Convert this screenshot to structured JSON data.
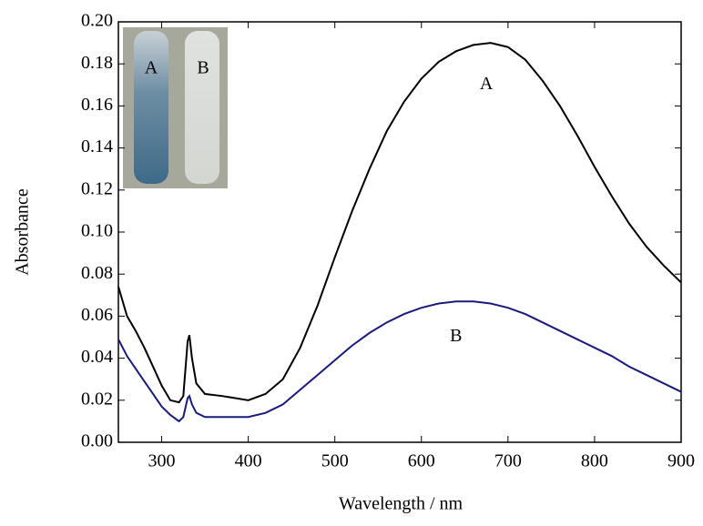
{
  "chart_data": {
    "type": "line",
    "xlabel": "Wavelength / nm",
    "ylabel": "Absorbance",
    "x": [
      250,
      260,
      270,
      280,
      290,
      300,
      310,
      320,
      325,
      330,
      332,
      335,
      340,
      350,
      370,
      400,
      420,
      440,
      460,
      480,
      500,
      520,
      540,
      560,
      580,
      600,
      620,
      640,
      660,
      680,
      700,
      720,
      740,
      760,
      780,
      800,
      820,
      840,
      860,
      880,
      900
    ],
    "series": [
      {
        "name": "A",
        "color": "#000000",
        "values": [
          0.074,
          0.06,
          0.053,
          0.045,
          0.036,
          0.027,
          0.02,
          0.019,
          0.022,
          0.048,
          0.051,
          0.04,
          0.028,
          0.023,
          0.022,
          0.02,
          0.023,
          0.03,
          0.045,
          0.065,
          0.088,
          0.11,
          0.13,
          0.148,
          0.162,
          0.173,
          0.181,
          0.186,
          0.189,
          0.19,
          0.188,
          0.182,
          0.172,
          0.16,
          0.146,
          0.131,
          0.117,
          0.104,
          0.093,
          0.084,
          0.076
        ]
      },
      {
        "name": "B",
        "color": "#1a1a7a",
        "values": [
          0.049,
          0.041,
          0.035,
          0.029,
          0.023,
          0.017,
          0.013,
          0.01,
          0.012,
          0.021,
          0.022,
          0.018,
          0.014,
          0.012,
          0.012,
          0.012,
          0.014,
          0.018,
          0.025,
          0.032,
          0.039,
          0.046,
          0.052,
          0.057,
          0.061,
          0.064,
          0.066,
          0.067,
          0.067,
          0.066,
          0.064,
          0.061,
          0.057,
          0.053,
          0.049,
          0.045,
          0.041,
          0.036,
          0.032,
          0.028,
          0.024
        ]
      }
    ],
    "annotations": [
      {
        "text": "A",
        "x": 675,
        "y": 0.17
      },
      {
        "text": "B",
        "x": 640,
        "y": 0.05
      }
    ],
    "inset_labels": [
      "A",
      "B"
    ],
    "xlim": [
      250,
      900
    ],
    "xticks": [
      300,
      400,
      500,
      600,
      700,
      800,
      900
    ],
    "ylim": [
      0,
      0.2
    ],
    "yticks": [
      {
        "value": 0,
        "label": "0.00"
      },
      {
        "value": 0.02,
        "label": "0.02"
      },
      {
        "value": 0.04,
        "label": "0.04"
      },
      {
        "value": 0.06,
        "label": "0.06"
      },
      {
        "value": 0.08,
        "label": "0.08"
      },
      {
        "value": 0.1,
        "label": "0.10"
      },
      {
        "value": 0.12,
        "label": "0.12"
      },
      {
        "value": 0.14,
        "label": "0.14"
      },
      {
        "value": 0.16,
        "label": "0.16"
      },
      {
        "value": 0.18,
        "label": "0.18"
      },
      {
        "value": 0.2,
        "label": "0.20"
      }
    ]
  }
}
